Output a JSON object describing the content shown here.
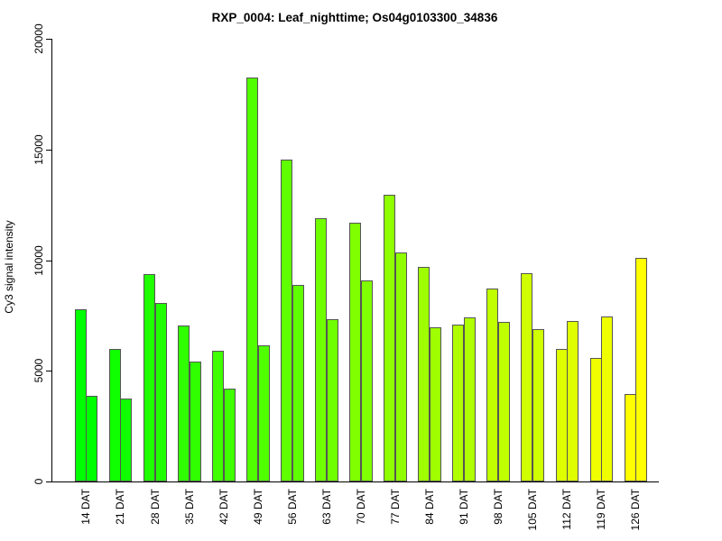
{
  "chart_data": {
    "type": "bar",
    "grouped": true,
    "title": "RXP_0004: Leaf_nighttime; Os04g0103300_34836",
    "xlabel": "",
    "ylabel": "Cy3 signal intensity",
    "ylim": [
      0,
      20000
    ],
    "yticks": [
      0,
      5000,
      10000,
      15000,
      20000
    ],
    "ytick_labels": [
      "0",
      "5000",
      "10000",
      "15000",
      "20000"
    ],
    "grid": false,
    "legend": "none",
    "categories": [
      "14 DAT",
      "21 DAT",
      "28 DAT",
      "35 DAT",
      "42 DAT",
      "49 DAT",
      "56 DAT",
      "63 DAT",
      "70 DAT",
      "77 DAT",
      "84 DAT",
      "91 DAT",
      "98 DAT",
      "105 DAT",
      "112 DAT",
      "119 DAT",
      "126 DAT"
    ],
    "series": [
      {
        "name": "",
        "values": [
          7800,
          6000,
          9350,
          7050,
          5900,
          18250,
          14550,
          11900,
          11700,
          12950,
          9700,
          7100,
          8700,
          9400,
          6000,
          5600,
          3950
        ]
      },
      {
        "name": "",
        "values": [
          3850,
          3750,
          8050,
          5400,
          4200,
          6150,
          8900,
          7350,
          9100,
          10350,
          6950,
          7400,
          7200,
          6900,
          7250,
          7450,
          10100
        ]
      }
    ],
    "group_colors": [
      "#00FF00",
      "#10FF00",
      "#20FF00",
      "#30FF00",
      "#40FF00",
      "#50FF00",
      "#60FF00",
      "#70FF00",
      "#80FF00",
      "#8FFF00",
      "#9FFF00",
      "#AFFF00",
      "#BFFF00",
      "#CFFF00",
      "#DFFF00",
      "#EFFF00",
      "#FFFF00"
    ],
    "bar_border_color": "#555555",
    "axis_color": "#000000",
    "text_color": "#000000",
    "background_color": "#FFFFFF"
  }
}
